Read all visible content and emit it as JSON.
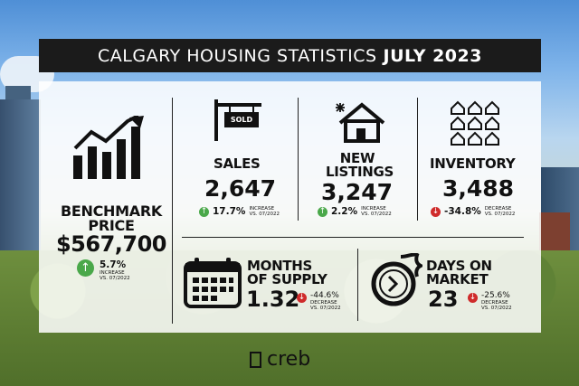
{
  "title": {
    "prefix": "CALGARY HOUSING STATISTICS",
    "period": "JULY 2023"
  },
  "benchmark": {
    "label_line1": "BENCHMARK",
    "label_line2": "PRICE",
    "value": "$567,700",
    "change": "5.7%",
    "change_word": "INCREASE",
    "compare": "VS. 07/2022",
    "icon": "bar-chart-up-icon"
  },
  "sales": {
    "label": "SALES",
    "value": "2,647",
    "change": "17.7%",
    "change_word": "INCREASE",
    "compare": "VS. 07/2022",
    "sign_text": "SOLD",
    "icon": "sold-sign-icon"
  },
  "new_listings": {
    "label_line1": "NEW",
    "label_line2": "LISTINGS",
    "value": "3,247",
    "change": "2.2%",
    "change_word": "INCREASE",
    "compare": "VS. 07/2022",
    "icon": "new-house-icon"
  },
  "inventory": {
    "label": "INVENTORY",
    "value": "3,488",
    "change": "-34.8%",
    "change_word": "DECREASE",
    "compare": "VS. 07/2022",
    "icon": "houses-grid-icon"
  },
  "months_supply": {
    "label_line1": "MONTHS",
    "label_line2": "OF SUPPLY",
    "value": "1.32",
    "change": "-44.6%",
    "change_word": "DECREASE",
    "compare": "VS. 07/2022",
    "icon": "calendar-icon"
  },
  "days_on_market": {
    "label_line1": "DAYS ON",
    "label_line2": "MARKET",
    "value": "23",
    "change": "-25.6%",
    "change_word": "DECREASE",
    "compare": "VS. 07/2022",
    "icon": "fast-clock-icon"
  },
  "logo": {
    "text": "creb"
  },
  "colors": {
    "increase": "#4aa84a",
    "decrease": "#cf2b2b",
    "title_bg": "#1b1b1b"
  }
}
